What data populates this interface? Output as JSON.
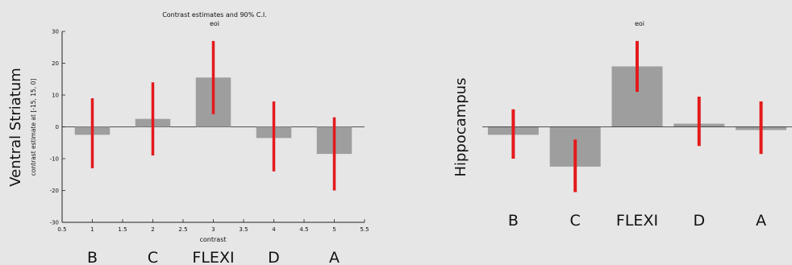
{
  "chart_data": [
    {
      "type": "bar",
      "title": "Contrast estimates and 90% C.I.",
      "subtitle": "eoi",
      "region_label": "Ventral Striatum",
      "ylabel": "contrast estimate at [-15, 15, 0]",
      "xlabel": "contrast",
      "x_ticks": [
        "0.5",
        "1",
        "1.5",
        "2",
        "2.5",
        "3",
        "3.5",
        "4",
        "4.5",
        "5",
        "5.5"
      ],
      "y_ticks": [
        "30",
        "20",
        "10",
        "0",
        "-10",
        "-20",
        "-30"
      ],
      "ylim": [
        -30,
        30
      ],
      "categories": [
        "B",
        "C",
        "FLEXI",
        "D",
        "A"
      ],
      "values": [
        -2.5,
        2.5,
        15.5,
        -3.5,
        -8.5
      ],
      "ci_low": [
        -13,
        -9,
        4,
        -14,
        -20
      ],
      "ci_high": [
        9,
        14,
        27,
        8,
        3
      ],
      "colors": {
        "bar": "#9e9e9e",
        "ci": "#e41a1c"
      }
    },
    {
      "type": "bar",
      "subtitle": "eoi",
      "region_label": "Hippocampus",
      "categories": [
        "B",
        "C",
        "FLEXI",
        "D",
        "A"
      ],
      "values": [
        -2.5,
        -12.5,
        19,
        1,
        -1
      ],
      "ci_low": [
        -10,
        -20.5,
        11,
        -6,
        -8.5
      ],
      "ci_high": [
        5.5,
        -4,
        27,
        9.5,
        8
      ],
      "colors": {
        "bar": "#9e9e9e",
        "ci": "#e41a1c"
      }
    }
  ]
}
